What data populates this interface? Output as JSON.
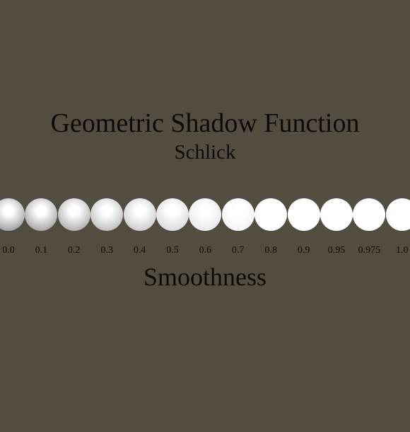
{
  "title": "Geometric Shadow Function",
  "subtitle": "Schlick",
  "axis_label": "Smoothness",
  "colors": {
    "background": "#534d41",
    "text": "#0d0b08",
    "sphere_highlight": "#ffffff",
    "sphere_shadow": "#5a5a5a"
  },
  "smoothness_values": [
    "0.0",
    "0.1",
    "0.2",
    "0.3",
    "0.4",
    "0.5",
    "0.6",
    "0.7",
    "0.8",
    "0.9",
    "0.95",
    "0.975",
    "1.0"
  ],
  "sphere_edge_brightness": [
    0.35,
    0.38,
    0.45,
    0.55,
    0.65,
    0.75,
    0.85,
    0.93,
    1.0,
    1.0,
    1.0,
    1.0,
    1.0
  ]
}
